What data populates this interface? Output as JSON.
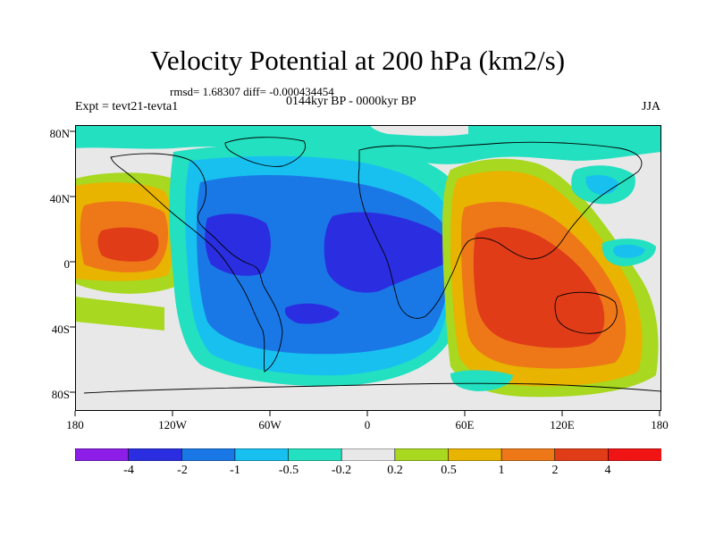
{
  "title": "Velocity Potential at 200 hPa (km2/s)",
  "stats": "rmsd= 1.68307 diff= -0.000434454",
  "experiment": "Expt = tevt21-tevta1",
  "period": "0144kyr BP - 0000kyr BP",
  "season": "JJA",
  "lat_ticks": [
    "80N",
    "40N",
    "0",
    "40S",
    "80S"
  ],
  "lon_ticks": [
    "180",
    "120W",
    "60W",
    "0",
    "60E",
    "120E",
    "180"
  ],
  "colorbar": {
    "labels": [
      "-4",
      "-2",
      "-1",
      "-0.5",
      "-0.2",
      "0.2",
      "0.5",
      "1",
      "2",
      "4"
    ],
    "colors": [
      "#8c1ee8",
      "#2a2ee0",
      "#1a78e6",
      "#18c0f0",
      "#22e0c0",
      "#e8e8e8",
      "#a8d820",
      "#e8b400",
      "#ee7818",
      "#e03c18",
      "#f01414"
    ]
  }
}
